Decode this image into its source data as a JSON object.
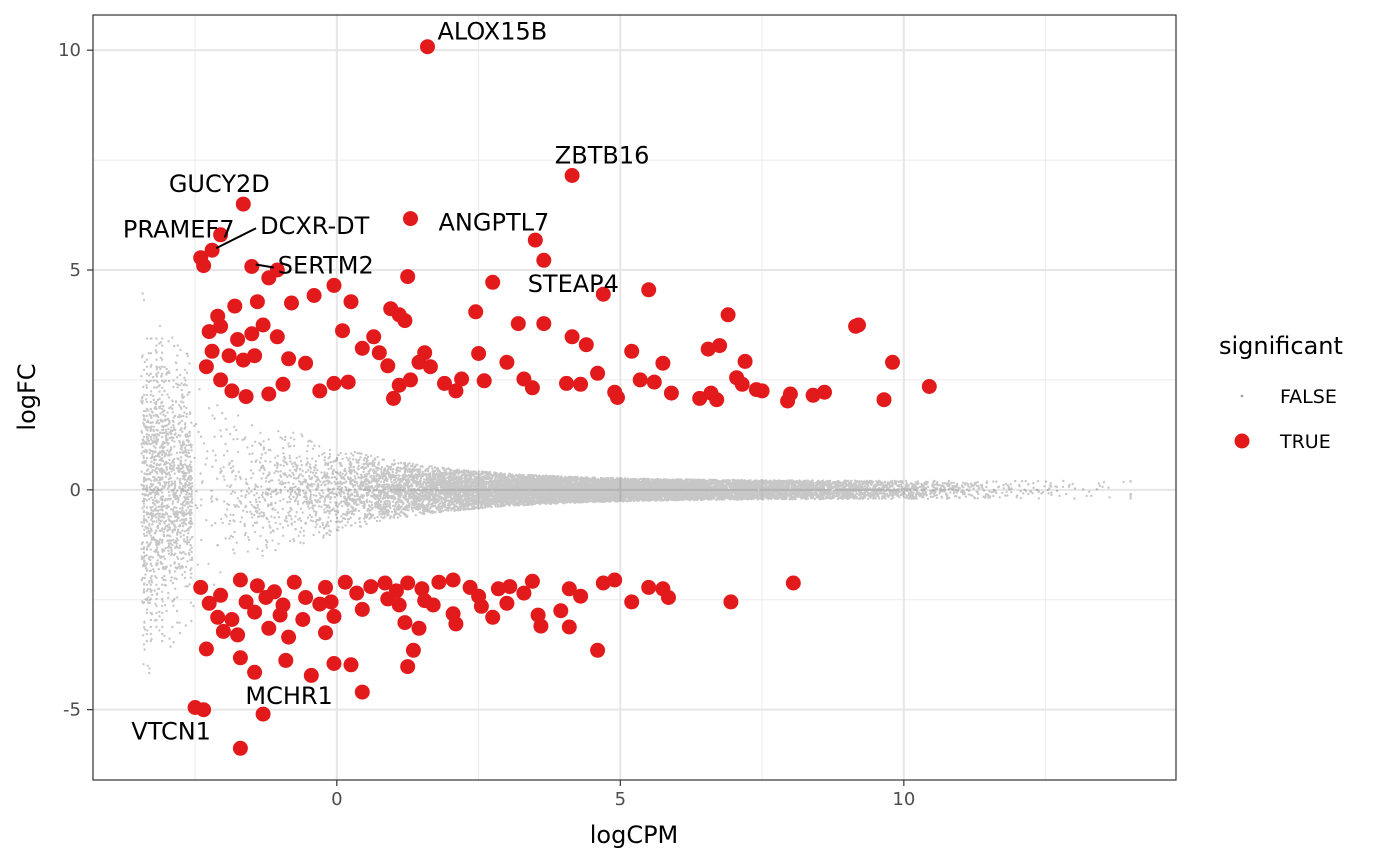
{
  "chart_data": {
    "type": "scatter",
    "title": "",
    "xlabel": "logCPM",
    "ylabel": "logFC",
    "xlim": [
      -4.3,
      14.8
    ],
    "ylim": [
      -6.6,
      10.8
    ],
    "x_ticks": [
      0,
      5,
      10
    ],
    "x_tick_labels": [
      "0",
      "5",
      "10"
    ],
    "y_ticks": [
      -5,
      0,
      5,
      10
    ],
    "y_tick_labels": [
      "-5",
      "0",
      "5",
      "10"
    ],
    "grid": true,
    "background": "panel with grey grid (theme_bw)",
    "legend": {
      "title": "significant",
      "position": "right",
      "entries": [
        {
          "label": "FALSE",
          "color": "#000000",
          "marker": "small translucent point"
        },
        {
          "label": "TRUE",
          "color": "#e31a1c",
          "marker": "large point"
        }
      ]
    },
    "series": [
      {
        "name": "FALSE",
        "color": "#000000",
        "description": "dense cloud of non-significant genes (~15000 points)",
        "summary": {
          "x_min": -3.5,
          "x_max": 14.0,
          "abs_logFC_upper_at_low_cpm": 4.5,
          "abs_logFC_upper_at_high_cpm": 0.2
        }
      },
      {
        "name": "TRUE",
        "color": "#e31a1c",
        "points": [
          [
            1.6,
            10.08
          ],
          [
            4.15,
            7.15
          ],
          [
            -1.65,
            6.5
          ],
          [
            1.3,
            6.17
          ],
          [
            3.5,
            5.68
          ],
          [
            3.65,
            5.22
          ],
          [
            2.75,
            4.72
          ],
          [
            4.7,
            4.45
          ],
          [
            5.5,
            4.55
          ],
          [
            -1.5,
            5.08
          ],
          [
            -1.2,
            4.82
          ],
          [
            1.25,
            4.85
          ],
          [
            -2.4,
            5.28
          ],
          [
            -2.2,
            5.45
          ],
          [
            -2.35,
            5.1
          ],
          [
            -1.05,
            5.0
          ],
          [
            -2.05,
            5.8
          ],
          [
            -2.1,
            3.95
          ],
          [
            -1.8,
            4.18
          ],
          [
            -1.4,
            4.28
          ],
          [
            -0.8,
            4.25
          ],
          [
            -0.4,
            4.42
          ],
          [
            -0.05,
            4.65
          ],
          [
            0.25,
            4.28
          ],
          [
            0.95,
            4.12
          ],
          [
            1.1,
            3.98
          ],
          [
            1.2,
            3.85
          ],
          [
            2.45,
            4.05
          ],
          [
            3.2,
            3.78
          ],
          [
            3.65,
            3.78
          ],
          [
            4.15,
            3.48
          ],
          [
            4.4,
            3.3
          ],
          [
            5.2,
            3.15
          ],
          [
            5.75,
            2.88
          ],
          [
            6.55,
            3.2
          ],
          [
            6.75,
            3.28
          ],
          [
            6.9,
            3.98
          ],
          [
            7.2,
            2.92
          ],
          [
            9.15,
            3.72
          ],
          [
            9.2,
            3.75
          ],
          [
            9.8,
            2.9
          ],
          [
            10.45,
            2.35
          ],
          [
            9.65,
            2.05
          ],
          [
            8.0,
            2.18
          ],
          [
            7.95,
            2.02
          ],
          [
            8.4,
            2.15
          ],
          [
            8.6,
            2.22
          ],
          [
            7.4,
            2.28
          ],
          [
            7.5,
            2.25
          ],
          [
            7.05,
            2.55
          ],
          [
            7.15,
            2.4
          ],
          [
            6.4,
            2.08
          ],
          [
            6.6,
            2.2
          ],
          [
            6.7,
            2.05
          ],
          [
            5.9,
            2.2
          ],
          [
            5.6,
            2.45
          ],
          [
            5.35,
            2.5
          ],
          [
            4.9,
            2.22
          ],
          [
            4.95,
            2.1
          ],
          [
            4.6,
            2.65
          ],
          [
            4.3,
            2.4
          ],
          [
            4.05,
            2.42
          ],
          [
            3.3,
            2.52
          ],
          [
            3.45,
            2.32
          ],
          [
            3.0,
            2.9
          ],
          [
            2.6,
            2.48
          ],
          [
            2.5,
            3.1
          ],
          [
            2.2,
            2.52
          ],
          [
            2.1,
            2.25
          ],
          [
            1.9,
            2.42
          ],
          [
            1.65,
            2.8
          ],
          [
            1.55,
            3.12
          ],
          [
            1.45,
            2.9
          ],
          [
            1.3,
            2.5
          ],
          [
            1.1,
            2.38
          ],
          [
            1.0,
            2.08
          ],
          [
            0.9,
            2.82
          ],
          [
            0.75,
            3.12
          ],
          [
            0.65,
            3.48
          ],
          [
            0.45,
            3.22
          ],
          [
            0.1,
            3.62
          ],
          [
            0.2,
            2.45
          ],
          [
            -0.05,
            2.42
          ],
          [
            -0.3,
            2.25
          ],
          [
            -0.55,
            2.88
          ],
          [
            -0.85,
            2.98
          ],
          [
            -1.05,
            3.48
          ],
          [
            -1.3,
            3.75
          ],
          [
            -1.5,
            3.55
          ],
          [
            -1.75,
            3.42
          ],
          [
            -2.05,
            3.72
          ],
          [
            -2.2,
            3.15
          ],
          [
            -2.3,
            2.8
          ],
          [
            -2.05,
            2.5
          ],
          [
            -1.85,
            2.25
          ],
          [
            -1.6,
            2.12
          ],
          [
            -1.2,
            2.18
          ],
          [
            -0.95,
            2.4
          ],
          [
            -1.65,
            2.95
          ],
          [
            -1.9,
            3.05
          ],
          [
            -1.45,
            3.05
          ],
          [
            -2.25,
            3.6
          ],
          [
            -2.5,
            -4.95
          ],
          [
            -2.35,
            -5.0
          ],
          [
            -1.7,
            -5.88
          ],
          [
            -1.3,
            -5.1
          ],
          [
            -1.45,
            -4.15
          ],
          [
            -0.45,
            -4.22
          ],
          [
            -0.05,
            -3.95
          ],
          [
            0.25,
            -3.98
          ],
          [
            0.45,
            -4.6
          ],
          [
            1.25,
            -4.02
          ],
          [
            1.35,
            -3.65
          ],
          [
            -0.9,
            -3.88
          ],
          [
            -1.7,
            -3.82
          ],
          [
            -2.3,
            -3.62
          ],
          [
            -2.0,
            -3.22
          ],
          [
            -1.75,
            -3.3
          ],
          [
            -1.2,
            -3.15
          ],
          [
            -0.85,
            -3.35
          ],
          [
            -0.6,
            -2.95
          ],
          [
            -0.2,
            -3.25
          ],
          [
            -0.05,
            -2.88
          ],
          [
            0.45,
            -2.72
          ],
          [
            1.1,
            -2.62
          ],
          [
            1.2,
            -3.02
          ],
          [
            1.45,
            -3.15
          ],
          [
            1.7,
            -2.62
          ],
          [
            2.05,
            -2.82
          ],
          [
            2.1,
            -3.05
          ],
          [
            2.55,
            -2.65
          ],
          [
            3.0,
            -2.58
          ],
          [
            3.3,
            -2.35
          ],
          [
            3.55,
            -2.85
          ],
          [
            3.6,
            -3.1
          ],
          [
            3.95,
            -2.75
          ],
          [
            4.1,
            -3.12
          ],
          [
            4.3,
            -2.42
          ],
          [
            4.6,
            -3.65
          ],
          [
            4.1,
            -2.25
          ],
          [
            4.7,
            -2.12
          ],
          [
            5.5,
            -2.22
          ],
          [
            5.75,
            -2.25
          ],
          [
            6.95,
            -2.55
          ],
          [
            8.05,
            -2.12
          ],
          [
            5.85,
            -2.45
          ],
          [
            5.2,
            -2.55
          ],
          [
            4.9,
            -2.05
          ],
          [
            3.45,
            -2.08
          ],
          [
            2.85,
            -2.25
          ],
          [
            2.35,
            -2.22
          ],
          [
            2.05,
            -2.05
          ],
          [
            1.8,
            -2.1
          ],
          [
            1.5,
            -2.25
          ],
          [
            1.25,
            -2.12
          ],
          [
            1.05,
            -2.3
          ],
          [
            0.85,
            -2.12
          ],
          [
            0.6,
            -2.2
          ],
          [
            0.35,
            -2.35
          ],
          [
            0.15,
            -2.1
          ],
          [
            -0.2,
            -2.22
          ],
          [
            -0.55,
            -2.45
          ],
          [
            -0.75,
            -2.1
          ],
          [
            -1.1,
            -2.32
          ],
          [
            -1.4,
            -2.18
          ],
          [
            -1.7,
            -2.05
          ],
          [
            -2.05,
            -2.4
          ],
          [
            -2.25,
            -2.58
          ],
          [
            -1.85,
            -2.95
          ],
          [
            -1.45,
            -2.78
          ],
          [
            -2.1,
            -2.9
          ],
          [
            -1.25,
            -2.45
          ],
          [
            -0.3,
            -2.6
          ],
          [
            0.9,
            -2.48
          ],
          [
            2.5,
            -2.42
          ],
          [
            3.05,
            -2.2
          ],
          [
            -0.1,
            -2.55
          ],
          [
            -0.95,
            -2.62
          ],
          [
            -1.6,
            -2.55
          ],
          [
            2.75,
            -2.9
          ],
          [
            1.55,
            -2.52
          ],
          [
            -2.4,
            -2.22
          ],
          [
            -1.0,
            -2.85
          ]
        ]
      }
    ],
    "annotations": [
      {
        "text": "ALOX15B",
        "x": 1.6,
        "y": 10.08
      },
      {
        "text": "ZBTB16",
        "x": 4.15,
        "y": 7.15
      },
      {
        "text": "GUCY2D",
        "x": -1.65,
        "y": 6.5
      },
      {
        "text": "ANGPTL7",
        "x": 1.3,
        "y": 6.17
      },
      {
        "text": "PRAMEF7",
        "x": -2.4,
        "y": 5.28
      },
      {
        "text": "DCXR-DT",
        "x": -2.2,
        "y": 5.45
      },
      {
        "text": "SERTM2",
        "x": -1.5,
        "y": 5.08
      },
      {
        "text": "STEAP4",
        "x": 4.7,
        "y": 4.45
      },
      {
        "text": "MCHR1",
        "x": -1.3,
        "y": -5.1
      },
      {
        "text": "VTCN1",
        "x": -2.5,
        "y": -4.95
      }
    ]
  }
}
